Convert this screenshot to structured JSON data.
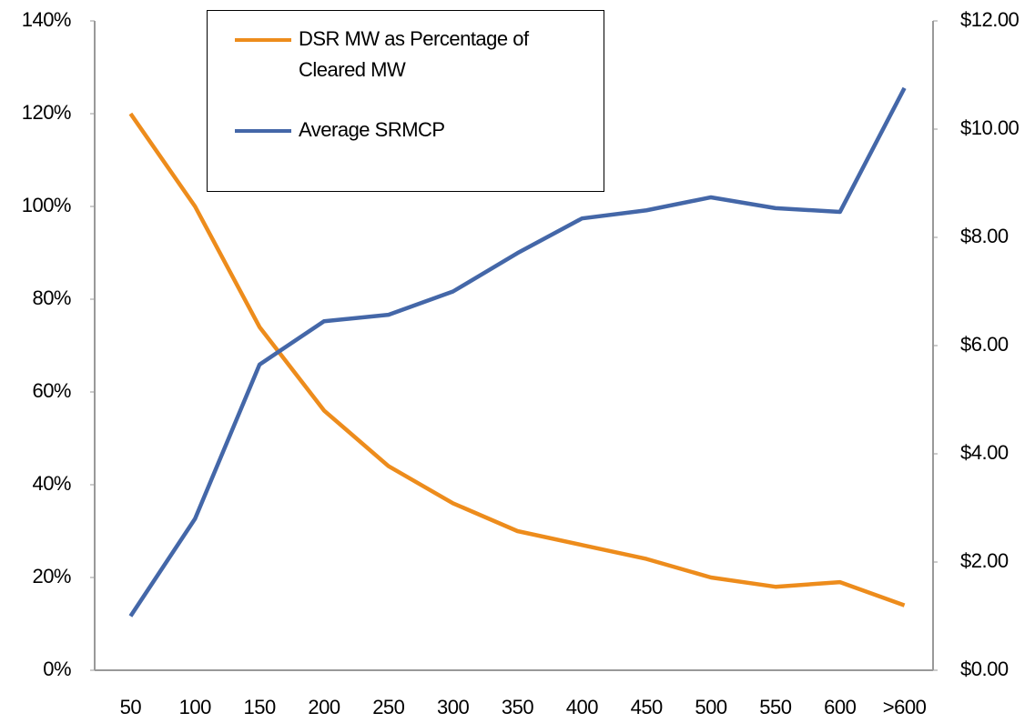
{
  "chart_data": {
    "type": "line",
    "categories": [
      "50",
      "100",
      "150",
      "200",
      "250",
      "300",
      "350",
      "400",
      "450",
      "500",
      "550",
      "600",
      ">600"
    ],
    "series": [
      {
        "name": "DSR MW as Percentage of Cleared MW",
        "color": "#ed8c1c",
        "values": [
          120,
          100,
          74,
          56,
          44,
          36,
          30,
          27,
          24,
          20,
          18,
          19,
          14
        ]
      },
      {
        "name": "Average SRMCP",
        "color": "#4467a8",
        "axis": "y2",
        "values": [
          1.0,
          2.8,
          5.65,
          6.45,
          6.57,
          7.0,
          7.71,
          8.35,
          8.5,
          8.74,
          8.54,
          8.47,
          10.76
        ]
      }
    ],
    "ylim": [
      0,
      140
    ],
    "yticks": [
      {
        "value": 0,
        "label": "0%"
      },
      {
        "value": 20,
        "label": "20%"
      },
      {
        "value": 40,
        "label": "40%"
      },
      {
        "value": 60,
        "label": "60%"
      },
      {
        "value": 80,
        "label": "80%"
      },
      {
        "value": 100,
        "label": "100%"
      },
      {
        "value": 120,
        "label": "120%"
      },
      {
        "value": 140,
        "label": "140%"
      }
    ],
    "y2lim": [
      0,
      12
    ],
    "y2ticks": [
      {
        "value": 0,
        "label": "$0.00"
      },
      {
        "value": 2,
        "label": "$2.00"
      },
      {
        "value": 4,
        "label": "$4.00"
      },
      {
        "value": 6,
        "label": "$6.00"
      },
      {
        "value": 8,
        "label": "$8.00"
      },
      {
        "value": 10,
        "label": "$10.00"
      },
      {
        "value": 12,
        "label": "$12.00"
      }
    ],
    "legend": "top-left"
  }
}
